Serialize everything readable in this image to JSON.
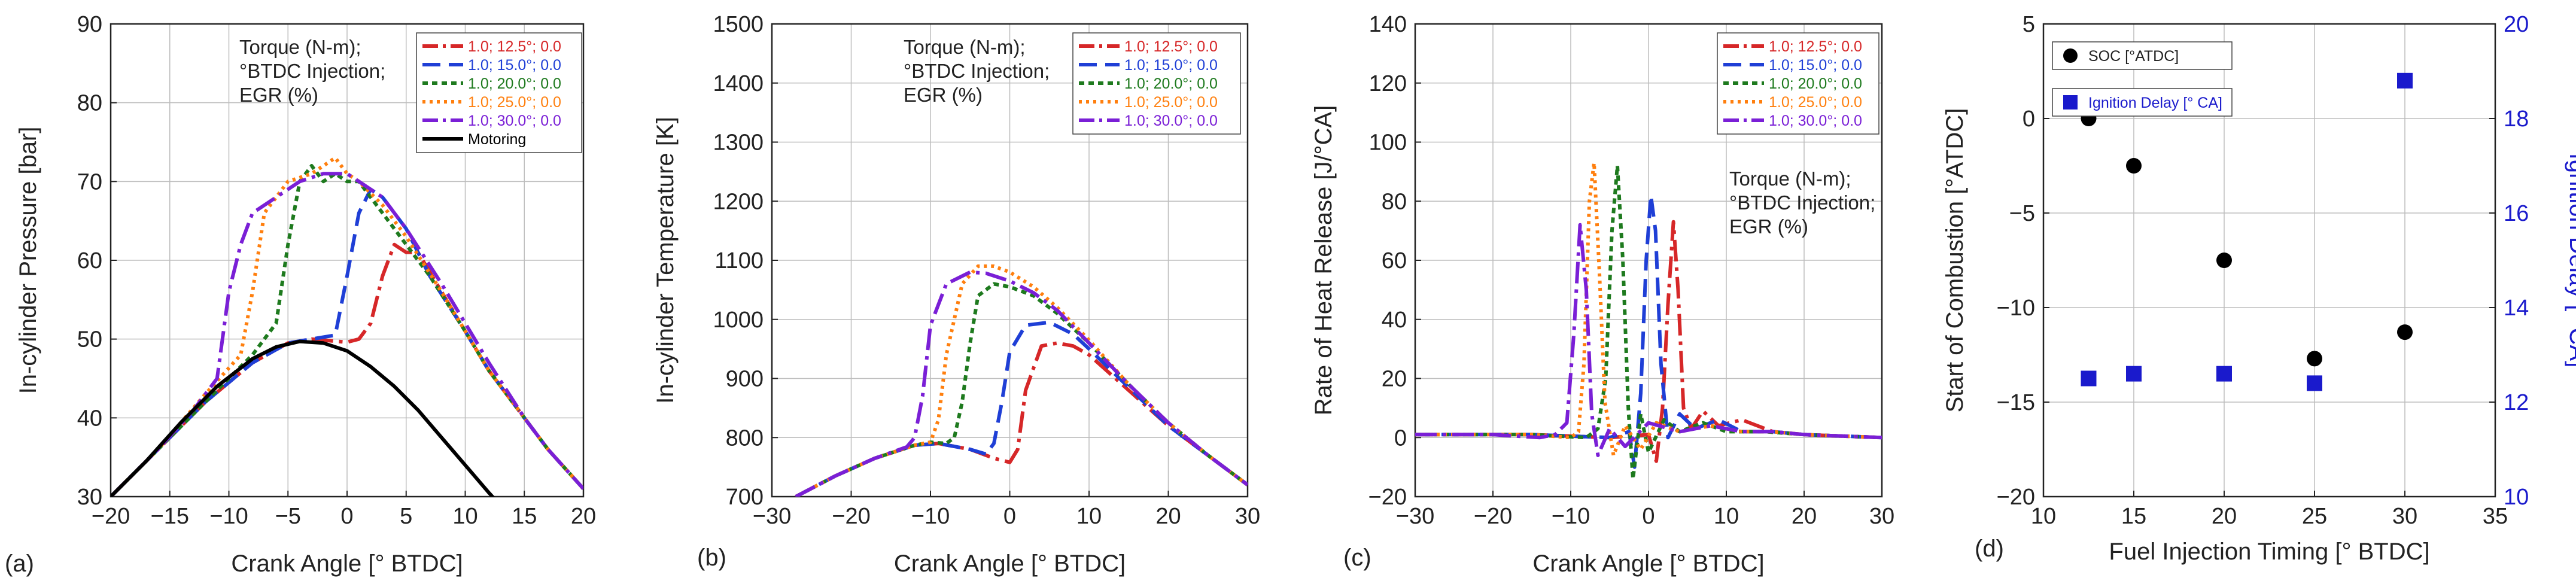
{
  "chart_data": [
    {
      "panel_label": "(a)",
      "type": "line",
      "xlabel": "Crank Angle [° BTDC]",
      "ylabel": "In-cylinder Pressure [bar]",
      "xlim": [
        -20,
        20
      ],
      "ylim": [
        30,
        90
      ],
      "xticks": [
        -20,
        -15,
        -10,
        -5,
        0,
        5,
        10,
        15,
        20
      ],
      "yticks": [
        30,
        40,
        50,
        60,
        70,
        80,
        90
      ],
      "xtick_labels": [
        "−20",
        "−15",
        "−10",
        "−5",
        "0",
        "5",
        "10",
        "15",
        "20"
      ],
      "ytick_labels": [
        "30",
        "40",
        "50",
        "60",
        "70",
        "80",
        "90"
      ],
      "grid": true,
      "annotation": [
        "Torque (N-m);",
        "°BTDC Injection;",
        "EGR (%)"
      ],
      "legend_position": "top-right",
      "series": [
        {
          "name": "1.0; 12.5°; 0.0",
          "color": "#d62728",
          "dash": "long-dash-dot",
          "x": [
            -20,
            -16,
            -12,
            -8,
            -5,
            -3,
            0,
            1,
            2,
            3,
            4,
            5,
            6,
            8,
            10,
            12,
            15,
            17,
            20
          ],
          "y": [
            30,
            36,
            42,
            47,
            49.5,
            50,
            49.6,
            50,
            52,
            58,
            62,
            61,
            61,
            56,
            51,
            46,
            40,
            36,
            31
          ]
        },
        {
          "name": "1.0; 15.0°; 0.0",
          "color": "#1f3fd6",
          "dash": "dash",
          "x": [
            -20,
            -16,
            -12,
            -8,
            -5,
            -3,
            -1,
            0,
            1,
            2,
            3,
            5,
            7,
            10,
            12,
            15,
            17,
            20
          ],
          "y": [
            30,
            36,
            42,
            47,
            49.5,
            50,
            50.5,
            58,
            66,
            69,
            68,
            64,
            58,
            51,
            46,
            40,
            36,
            31
          ]
        },
        {
          "name": "1.0; 20.0°; 0.0",
          "color": "#1e7a1e",
          "dash": "dot",
          "x": [
            -20,
            -16,
            -12,
            -8,
            -6,
            -5,
            -4,
            -3,
            -2,
            -1,
            0,
            1,
            2,
            4,
            7,
            10,
            12,
            15,
            17,
            20
          ],
          "y": [
            30,
            36,
            42,
            48,
            52,
            62,
            70,
            72,
            70,
            71,
            70,
            70,
            68,
            64,
            58,
            51,
            46,
            40,
            36,
            31
          ]
        },
        {
          "name": "1.0; 25.0°; 0.0",
          "color": "#ff7f0e",
          "dash": "fine-dot",
          "x": [
            -20,
            -16,
            -12,
            -9,
            -8,
            -7,
            -5,
            -3,
            -1,
            0,
            1,
            3,
            5,
            8,
            10,
            12,
            15,
            17,
            20
          ],
          "y": [
            30,
            36,
            43,
            48,
            56,
            66,
            70,
            71,
            73,
            71,
            70,
            67,
            63,
            56,
            51,
            46,
            40,
            36,
            31
          ]
        },
        {
          "name": "1.0; 30.0°; 0.0",
          "color": "#7a1fd6",
          "dash": "long-dash-dot",
          "x": [
            -20,
            -16,
            -13,
            -11,
            -10,
            -9,
            -8,
            -6,
            -4,
            -2,
            0,
            1,
            3,
            5,
            8,
            10,
            12,
            15,
            17,
            20
          ],
          "y": [
            30,
            36,
            41,
            45,
            56,
            62,
            66,
            68,
            70,
            71,
            71,
            70,
            68,
            64,
            57,
            52,
            47,
            40,
            36,
            31
          ]
        },
        {
          "name": "Motoring",
          "color": "#000000",
          "dash": "solid",
          "x": [
            -20,
            -17,
            -14,
            -11,
            -8,
            -6,
            -4,
            -2,
            0,
            2,
            4,
            6,
            8,
            10,
            12,
            13.5
          ],
          "y": [
            30,
            34.5,
            39.5,
            44,
            47.5,
            49,
            49.7,
            49.5,
            48.5,
            46.5,
            44,
            41,
            37.5,
            34,
            30.5,
            28
          ]
        }
      ]
    },
    {
      "panel_label": "(b)",
      "type": "line",
      "xlabel": "Crank Angle [° BTDC]",
      "ylabel": "In-cylinder Temperature [K]",
      "xlim": [
        -30,
        30
      ],
      "ylim": [
        700,
        1500
      ],
      "xticks": [
        -30,
        -20,
        -10,
        0,
        10,
        20,
        30
      ],
      "yticks": [
        700,
        800,
        900,
        1000,
        1100,
        1200,
        1300,
        1400,
        1500
      ],
      "xtick_labels": [
        "−30",
        "−20",
        "−10",
        "0",
        "10",
        "20",
        "30"
      ],
      "ytick_labels": [
        "700",
        "800",
        "900",
        "1000",
        "1100",
        "1200",
        "1300",
        "1400",
        "1500"
      ],
      "grid": true,
      "annotation": [
        "Torque (N-m);",
        "°BTDC Injection;",
        "EGR (%)"
      ],
      "legend_position": "top-right",
      "series": [
        {
          "name": "1.0; 12.5°; 0.0",
          "color": "#d62728",
          "dash": "long-dash-dot",
          "x": [
            -27,
            -22,
            -17,
            -12,
            -9,
            -5,
            -2,
            0,
            1,
            2,
            4,
            6,
            8,
            10,
            15,
            20,
            25,
            30
          ],
          "y": [
            700,
            735,
            765,
            787,
            790,
            780,
            765,
            758,
            780,
            880,
            955,
            960,
            955,
            940,
            880,
            820,
            770,
            720
          ]
        },
        {
          "name": "1.0; 15.0°; 0.0",
          "color": "#1f3fd6",
          "dash": "dash",
          "x": [
            -27,
            -22,
            -17,
            -12,
            -9,
            -5,
            -3,
            -2,
            -1,
            0,
            2,
            5,
            8,
            10,
            15,
            20,
            25,
            30
          ],
          "y": [
            700,
            735,
            765,
            787,
            790,
            780,
            772,
            790,
            860,
            945,
            990,
            995,
            975,
            950,
            885,
            820,
            770,
            720
          ]
        },
        {
          "name": "1.0; 20.0°; 0.0",
          "color": "#1e7a1e",
          "dash": "dot",
          "x": [
            -27,
            -22,
            -17,
            -12,
            -10,
            -8,
            -7,
            -6,
            -5,
            -4,
            -2,
            0,
            3,
            6,
            10,
            15,
            20,
            25,
            30
          ],
          "y": [
            700,
            735,
            765,
            787,
            792,
            790,
            800,
            860,
            960,
            1040,
            1060,
            1055,
            1040,
            1010,
            960,
            890,
            825,
            770,
            720
          ]
        },
        {
          "name": "1.0; 25.0°; 0.0",
          "color": "#ff7f0e",
          "dash": "fine-dot",
          "x": [
            -27,
            -22,
            -17,
            -12,
            -10,
            -9,
            -8,
            -6,
            -4,
            -2,
            0,
            3,
            6,
            10,
            15,
            20,
            25,
            30
          ],
          "y": [
            700,
            735,
            765,
            787,
            792,
            830,
            940,
            1060,
            1090,
            1090,
            1080,
            1055,
            1020,
            965,
            890,
            825,
            770,
            720
          ]
        },
        {
          "name": "1.0; 30.0°; 0.0",
          "color": "#7a1fd6",
          "dash": "long-dash-dot",
          "x": [
            -27,
            -22,
            -17,
            -13,
            -12,
            -11,
            -10,
            -8,
            -5,
            -3,
            0,
            3,
            6,
            10,
            15,
            20,
            25,
            30
          ],
          "y": [
            700,
            735,
            765,
            784,
            800,
            870,
            990,
            1060,
            1080,
            1078,
            1065,
            1045,
            1015,
            960,
            890,
            825,
            770,
            720
          ]
        }
      ]
    },
    {
      "panel_label": "(c)",
      "type": "line",
      "xlabel": "Crank Angle [° BTDC]",
      "ylabel": "Rate of Heat Release [J/°CA]",
      "xlim": [
        -30,
        30
      ],
      "ylim": [
        -20,
        140
      ],
      "xticks": [
        -30,
        -20,
        -10,
        0,
        10,
        20,
        30
      ],
      "yticks": [
        -20,
        0,
        20,
        40,
        60,
        80,
        100,
        120,
        140
      ],
      "xtick_labels": [
        "−30",
        "−20",
        "−10",
        "0",
        "10",
        "20",
        "30"
      ],
      "ytick_labels": [
        "−20",
        "0",
        "20",
        "40",
        "60",
        "80",
        "100",
        "120",
        "140"
      ],
      "grid": true,
      "annotation": [
        "Torque (N-m);",
        "°BTDC Injection;",
        "EGR (%)"
      ],
      "legend_position": "top-right",
      "series": [
        {
          "name": "1.0; 12.5°; 0.0",
          "color": "#d62728",
          "dash": "long-dash-dot",
          "x": [
            -30,
            -15,
            -5,
            0,
            1,
            1.8,
            2.5,
            3.2,
            3.8,
            4.5,
            5.5,
            7,
            9,
            12,
            16,
            20,
            30
          ],
          "y": [
            1,
            1,
            0,
            1,
            -8,
            10,
            45,
            73,
            50,
            10,
            3,
            9,
            4,
            6,
            2,
            1,
            0
          ]
        },
        {
          "name": "1.0; 15.0°; 0.0",
          "color": "#1f3fd6",
          "dash": "dash",
          "x": [
            -30,
            -15,
            -5,
            -2.5,
            -1.8,
            -1,
            -0.3,
            0.3,
            0.9,
            1.6,
            2.5,
            4,
            6,
            9,
            12,
            16,
            20,
            30
          ],
          "y": [
            1,
            1,
            0,
            2,
            -10,
            15,
            60,
            82,
            70,
            25,
            0,
            8,
            3,
            6,
            2,
            2,
            1,
            0
          ]
        },
        {
          "name": "1.0; 20.0°; 0.0",
          "color": "#1e7a1e",
          "dash": "dot",
          "x": [
            -30,
            -15,
            -8,
            -6.5,
            -5.5,
            -4.7,
            -4,
            -3.3,
            -2.6,
            -2,
            -1,
            0,
            2,
            4,
            7,
            10,
            15,
            20,
            30
          ],
          "y": [
            1,
            1,
            0,
            3,
            20,
            70,
            92,
            60,
            10,
            -14,
            8,
            -5,
            6,
            2,
            5,
            2,
            2,
            1,
            0
          ]
        },
        {
          "name": "1.0; 25.0°; 0.0",
          "color": "#ff7f0e",
          "dash": "fine-dot",
          "x": [
            -30,
            -15,
            -10,
            -9,
            -8.3,
            -7.6,
            -7,
            -6.3,
            -5.6,
            -4.5,
            -3,
            -1,
            1,
            4,
            8,
            12,
            16,
            20,
            30
          ],
          "y": [
            1,
            1,
            0,
            2,
            25,
            80,
            93,
            55,
            12,
            -6,
            4,
            -4,
            5,
            2,
            4,
            2,
            2,
            1,
            0
          ]
        },
        {
          "name": "1.0; 30.0°; 0.0",
          "color": "#7a1fd6",
          "dash": "long-dash-dot",
          "x": [
            -30,
            -20,
            -14,
            -12,
            -10.5,
            -9.6,
            -8.8,
            -8,
            -7.3,
            -6.5,
            -5,
            -3,
            0,
            4,
            8,
            12,
            16,
            20,
            30
          ],
          "y": [
            1,
            1,
            0,
            1,
            5,
            35,
            72,
            50,
            8,
            -6,
            3,
            -3,
            5,
            2,
            4,
            2,
            2,
            1,
            0
          ]
        }
      ]
    },
    {
      "panel_label": "(d)",
      "type": "scatter",
      "xlabel": "Fuel Injection Timing [° BTDC]",
      "ylabel": "Start of Combustion [°ATDC]",
      "y2label": "Ignition Delay [° CA]",
      "xlim": [
        10,
        35
      ],
      "ylim": [
        -20,
        5
      ],
      "y2lim": [
        10,
        20
      ],
      "xticks": [
        10,
        15,
        20,
        25,
        30,
        35
      ],
      "yticks": [
        -20,
        -15,
        -10,
        -5,
        0,
        5
      ],
      "y2ticks": [
        10,
        12,
        14,
        16,
        18,
        20
      ],
      "xtick_labels": [
        "10",
        "15",
        "20",
        "25",
        "30",
        "35"
      ],
      "ytick_labels": [
        "−20",
        "−15",
        "−10",
        "−5",
        "0",
        "5"
      ],
      "y2tick_labels": [
        "10",
        "12",
        "14",
        "16",
        "18",
        "20"
      ],
      "grid": true,
      "legend_position": "top-left",
      "series": [
        {
          "name": "SOC [°ATDC]",
          "axis": "left",
          "marker": "circle",
          "color": "#000000",
          "x": [
            12.5,
            15,
            20,
            25,
            30
          ],
          "y": [
            0,
            -2.5,
            -7.5,
            -12.7,
            -11.3
          ]
        },
        {
          "name": "Ignition Delay [° CA]",
          "axis": "right",
          "marker": "square",
          "color": "#1a1acc",
          "x": [
            12.5,
            15,
            20,
            25,
            30
          ],
          "y": [
            12.5,
            12.6,
            12.6,
            12.4,
            18.8
          ]
        }
      ]
    }
  ]
}
